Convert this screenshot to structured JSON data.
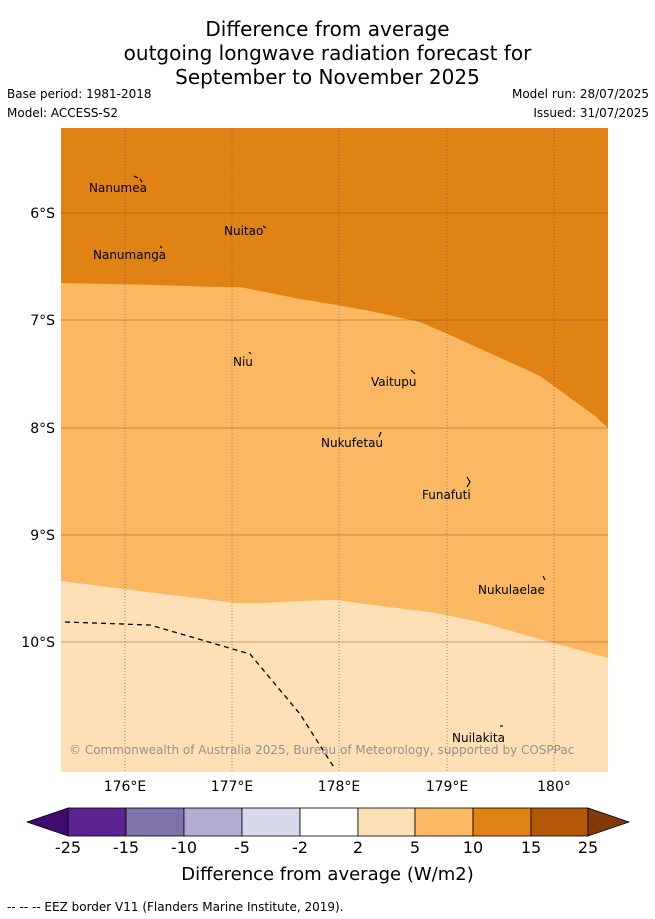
{
  "title": {
    "line1": "Difference from average",
    "line2": "outgoing longwave radiation forecast for",
    "line3": "September to November 2025"
  },
  "meta": {
    "base_period": "Base period: 1981-2018",
    "model": "Model: ACCESS-S2",
    "model_run": "Model run: 28/07/2025",
    "issued": "Issued: 31/07/2025"
  },
  "map": {
    "lat_labels": [
      "6°S",
      "7°S",
      "8°S",
      "9°S",
      "10°S"
    ],
    "lon_labels": [
      "176°E",
      "177°E",
      "178°E",
      "179°E",
      "180°"
    ],
    "places": [
      "Nanumea",
      "Nuitao",
      "Nanumanga",
      "Niu",
      "Vaitupu",
      "Nukufetau",
      "Funafuti",
      "Nukulaelae",
      "Nuilakita"
    ],
    "copyright": "© Commonwealth of Australia 2025, Bureau of Meteorology, supported by COSPPac",
    "colors": {
      "band_10_15": "#e08314",
      "band_5_10": "#fbb862",
      "band_2_5": "#fee0b6"
    }
  },
  "colorbar": {
    "ticks": [
      "-25",
      "-15",
      "-10",
      "-5",
      "-2",
      "2",
      "5",
      "10",
      "15",
      "25"
    ],
    "colors": [
      "#3f0b6e",
      "#5b2390",
      "#8073ac",
      "#b2abd2",
      "#d8daeb",
      "#ffffff",
      "#fee0b6",
      "#fbb862",
      "#e08314",
      "#b35806",
      "#7f3b08"
    ],
    "label": "Difference from average (W/m2)"
  },
  "footer": "-- -- -- EEZ border V11 (Flanders Marine Institute, 2019)."
}
